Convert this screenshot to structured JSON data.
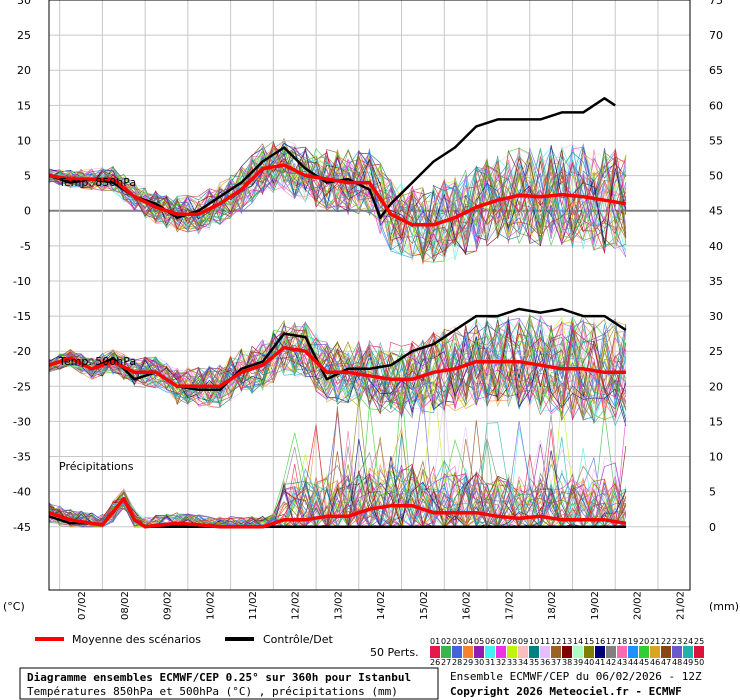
{
  "chart_data": {
    "type": "line",
    "left_axis": {
      "unit": "(°C)",
      "ticks": [
        30,
        25,
        20,
        15,
        10,
        5,
        0,
        -5,
        -10,
        -15,
        -20,
        -25,
        -30,
        -35,
        -40,
        -45
      ],
      "range": [
        -54,
        30
      ]
    },
    "right_axis": {
      "unit": "(mm)",
      "ticks": [
        75,
        70,
        65,
        60,
        55,
        50,
        45,
        40,
        35,
        30,
        25,
        20,
        15,
        10,
        5,
        0
      ],
      "range": [
        -9,
        75
      ]
    },
    "x_dates": [
      "07/02",
      "08/02",
      "09/02",
      "10/02",
      "11/02",
      "12/02",
      "13/02",
      "14/02",
      "15/02",
      "16/02",
      "17/02",
      "18/02",
      "19/02",
      "20/02",
      "21/02"
    ],
    "x_hours": [
      0,
      360
    ],
    "panels": [
      {
        "label": "Temp. 850hPa",
        "mean": [
          [
            0,
            5
          ],
          [
            12,
            4.5
          ],
          [
            24,
            4.5
          ],
          [
            36,
            4.5
          ],
          [
            48,
            2
          ],
          [
            60,
            0.5
          ],
          [
            72,
            -0.5
          ],
          [
            84,
            -0.5
          ],
          [
            96,
            1
          ],
          [
            108,
            3
          ],
          [
            120,
            6
          ],
          [
            132,
            6.5
          ],
          [
            144,
            5
          ],
          [
            156,
            4.5
          ],
          [
            168,
            4
          ],
          [
            180,
            4
          ],
          [
            192,
            -0.5
          ],
          [
            204,
            -2
          ],
          [
            216,
            -2
          ],
          [
            228,
            -1
          ],
          [
            240,
            0.5
          ],
          [
            252,
            1.5
          ],
          [
            264,
            2.2
          ],
          [
            276,
            2
          ],
          [
            288,
            2.3
          ],
          [
            300,
            2
          ],
          [
            312,
            1.5
          ],
          [
            324,
            1
          ]
        ],
        "control": [
          [
            0,
            5
          ],
          [
            12,
            4
          ],
          [
            24,
            4.5
          ],
          [
            36,
            4
          ],
          [
            48,
            2
          ],
          [
            60,
            1
          ],
          [
            72,
            -1
          ],
          [
            84,
            0
          ],
          [
            96,
            2
          ],
          [
            108,
            4
          ],
          [
            120,
            7
          ],
          [
            132,
            9
          ],
          [
            144,
            6
          ],
          [
            156,
            4
          ],
          [
            168,
            4.5
          ],
          [
            180,
            3
          ],
          [
            186,
            -1
          ],
          [
            192,
            1
          ],
          [
            204,
            4
          ],
          [
            216,
            7
          ],
          [
            228,
            9
          ],
          [
            240,
            12
          ],
          [
            252,
            13
          ],
          [
            264,
            13
          ],
          [
            276,
            13
          ],
          [
            288,
            14
          ],
          [
            300,
            14
          ],
          [
            312,
            16
          ],
          [
            318,
            15
          ]
        ]
      },
      {
        "label": "Temp. 500hPa",
        "mean": [
          [
            0,
            -22
          ],
          [
            12,
            -21
          ],
          [
            24,
            -22.5
          ],
          [
            36,
            -21.5
          ],
          [
            48,
            -23
          ],
          [
            60,
            -23
          ],
          [
            72,
            -25
          ],
          [
            84,
            -25
          ],
          [
            96,
            -25
          ],
          [
            108,
            -23
          ],
          [
            120,
            -22
          ],
          [
            132,
            -19.5
          ],
          [
            144,
            -20
          ],
          [
            156,
            -23
          ],
          [
            168,
            -23
          ],
          [
            180,
            -23.5
          ],
          [
            192,
            -24
          ],
          [
            204,
            -24
          ],
          [
            216,
            -23
          ],
          [
            228,
            -22.5
          ],
          [
            240,
            -21.5
          ],
          [
            252,
            -21.5
          ],
          [
            264,
            -21.5
          ],
          [
            276,
            -22
          ],
          [
            288,
            -22.5
          ],
          [
            300,
            -22.5
          ],
          [
            312,
            -23
          ],
          [
            324,
            -23
          ]
        ],
        "control": [
          [
            0,
            -22
          ],
          [
            12,
            -21
          ],
          [
            24,
            -22.5
          ],
          [
            36,
            -21
          ],
          [
            48,
            -24
          ],
          [
            60,
            -23
          ],
          [
            72,
            -25
          ],
          [
            84,
            -25.5
          ],
          [
            96,
            -25.5
          ],
          [
            108,
            -22.5
          ],
          [
            120,
            -21.5
          ],
          [
            132,
            -17.5
          ],
          [
            144,
            -18
          ],
          [
            156,
            -24
          ],
          [
            168,
            -22.5
          ],
          [
            180,
            -22.5
          ],
          [
            192,
            -22
          ],
          [
            204,
            -20
          ],
          [
            216,
            -19
          ],
          [
            228,
            -17
          ],
          [
            240,
            -15
          ],
          [
            252,
            -15
          ],
          [
            264,
            -14
          ],
          [
            276,
            -14.5
          ],
          [
            288,
            -14
          ],
          [
            300,
            -15
          ],
          [
            312,
            -15
          ],
          [
            324,
            -17
          ]
        ]
      },
      {
        "label": "Précipitations",
        "mean": [
          [
            0,
            2
          ],
          [
            12,
            1
          ],
          [
            24,
            0.5
          ],
          [
            30,
            0.3
          ],
          [
            42,
            4
          ],
          [
            48,
            1
          ],
          [
            54,
            0
          ],
          [
            72,
            0.5
          ],
          [
            84,
            0.3
          ],
          [
            96,
            0
          ],
          [
            108,
            0
          ],
          [
            120,
            0
          ],
          [
            132,
            1
          ],
          [
            144,
            1
          ],
          [
            156,
            1.5
          ],
          [
            168,
            1.5
          ],
          [
            180,
            2.5
          ],
          [
            192,
            3
          ],
          [
            204,
            3
          ],
          [
            216,
            2
          ],
          [
            228,
            2
          ],
          [
            240,
            2
          ],
          [
            252,
            1.5
          ],
          [
            264,
            1.2
          ],
          [
            276,
            1.5
          ],
          [
            288,
            1
          ],
          [
            300,
            1
          ],
          [
            312,
            1
          ],
          [
            324,
            0.5
          ]
        ],
        "control": [
          [
            0,
            1.5
          ],
          [
            12,
            0.5
          ],
          [
            24,
            0.5
          ],
          [
            30,
            0.3
          ],
          [
            42,
            4
          ],
          [
            48,
            1
          ],
          [
            54,
            0
          ],
          [
            72,
            0
          ],
          [
            84,
            0
          ],
          [
            96,
            0
          ],
          [
            108,
            0
          ],
          [
            120,
            0
          ],
          [
            132,
            0
          ],
          [
            144,
            0
          ],
          [
            156,
            0
          ],
          [
            168,
            0
          ],
          [
            180,
            0
          ],
          [
            192,
            0
          ],
          [
            204,
            0
          ],
          [
            216,
            0
          ],
          [
            228,
            0
          ],
          [
            240,
            0
          ],
          [
            252,
            0
          ],
          [
            264,
            0
          ],
          [
            276,
            0
          ],
          [
            288,
            0
          ],
          [
            300,
            0
          ],
          [
            312,
            0
          ],
          [
            324,
            0
          ]
        ]
      }
    ],
    "legend": {
      "mean_label": "Moyenne des scénarios",
      "control_label": "Contrôle/Det",
      "mean_color": "#ff0000",
      "control_color": "#000000",
      "perts_label": "50 Perts.",
      "perts_numbers": [
        "01",
        "02",
        "03",
        "04",
        "05",
        "06",
        "07",
        "08",
        "09",
        "10",
        "11",
        "12",
        "13",
        "14",
        "15",
        "16",
        "17",
        "18",
        "19",
        "20",
        "21",
        "22",
        "23",
        "24",
        "25",
        "26",
        "27",
        "28",
        "29",
        "30",
        "31",
        "32",
        "33",
        "34",
        "35",
        "36",
        "37",
        "38",
        "39",
        "40",
        "41",
        "42",
        "43",
        "44",
        "45",
        "46",
        "47",
        "48",
        "49",
        "50"
      ]
    },
    "footer": {
      "title": "Diagramme ensembles ECMWF/CEP 0.25° sur 360h pour Istanbul",
      "subtitle": "Températures 850hPa et 500hPa (°C) , précipitations (mm)",
      "run": "Ensemble ECMWF/CEP du 06/02/2026 - 12Z",
      "copyright": "Copyright 2026 Meteociel.fr - ECMWF"
    }
  }
}
